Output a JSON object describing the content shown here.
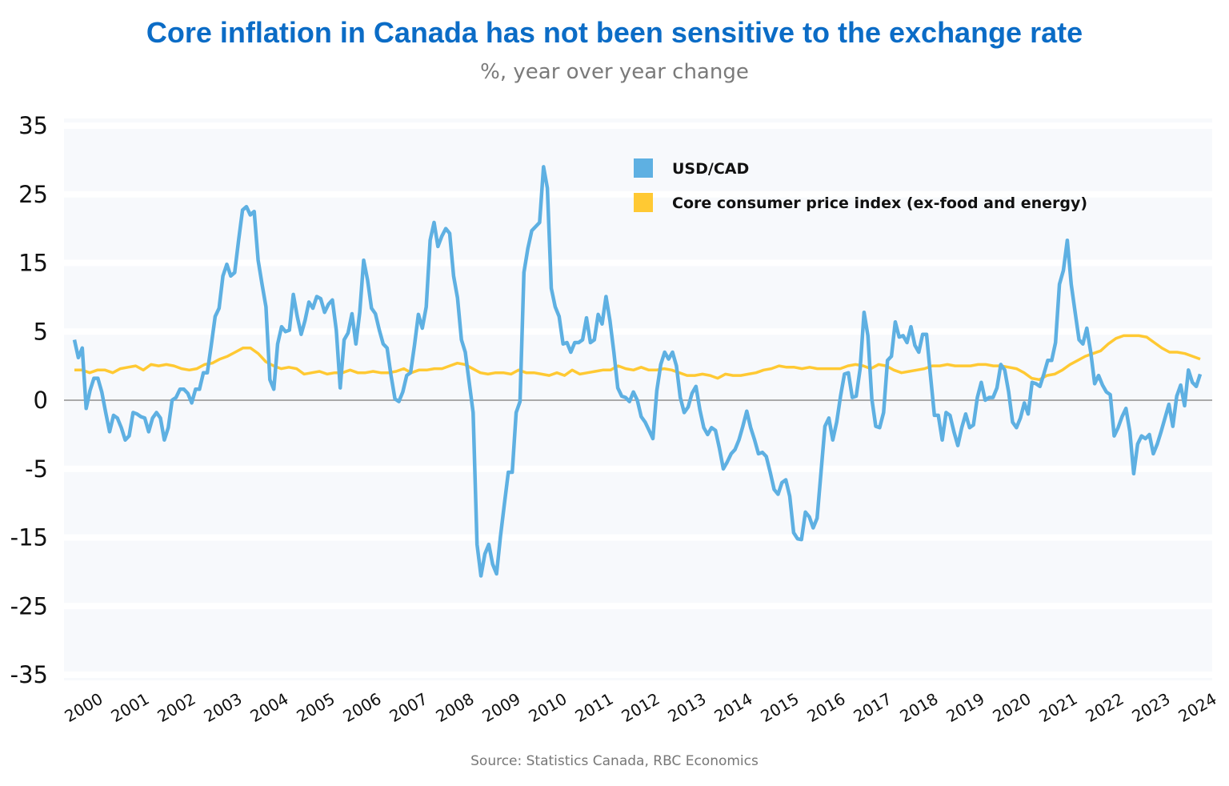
{
  "chart_data": {
    "type": "line",
    "title": "Core inflation in Canada has not been sensitive to the exchange rate",
    "subtitle": "%, year over year change",
    "source": "Source: Statistics Canada, RBC Economics",
    "y_ticks": [
      "35",
      "25",
      "15",
      "5",
      "0",
      "-5",
      "-15",
      "-25",
      "-35"
    ],
    "y_tick_values": [
      35,
      25,
      15,
      5,
      0,
      -5,
      -15,
      -25,
      -35
    ],
    "x_ticks": [
      "2000",
      "2001",
      "2002",
      "2003",
      "2004",
      "2005",
      "2006",
      "2007",
      "2008",
      "2009",
      "2010",
      "2011",
      "2012",
      "2013",
      "2014",
      "2015",
      "2016",
      "2017",
      "2018",
      "2019",
      "2020",
      "2021",
      "2022",
      "2023",
      "2024"
    ],
    "x_range": [
      "2000-01",
      "2023-12"
    ],
    "grid": true,
    "legend_position": "top-center",
    "colors": {
      "title": "#0b6cc6",
      "usdcad": "#5eb0e2",
      "core": "#ffc933",
      "plot_bg": "#f7f9fc",
      "zero_line": "#aaaaaa"
    },
    "series": [
      {
        "name": "USD/CAD",
        "start": "2000-01",
        "frequency": "monthly",
        "values": [
          4.4,
          3.1,
          3.8,
          -0.6,
          0.7,
          1.6,
          1.6,
          0.6,
          -0.9,
          -2.3,
          -1.1,
          -1.3,
          -2.0,
          -2.9,
          -2.6,
          -0.9,
          -1.0,
          -1.2,
          -1.3,
          -2.3,
          -1.3,
          -0.9,
          -1.3,
          -2.9,
          -2.0,
          0,
          0.2,
          0.8,
          0.8,
          0.5,
          -0.2,
          0.8,
          0.8,
          2.0,
          2.0,
          4.0,
          7.2,
          8.4,
          13.1,
          14.8,
          13.1,
          13.6,
          18.3,
          22.7,
          23.2,
          22.0,
          22.5,
          15.4,
          11.9,
          8.6,
          1.5,
          0.8,
          4.1,
          5.7,
          5.0,
          5.2,
          10.4,
          7.2,
          4.8,
          6.6,
          9.3,
          8.4,
          10.1,
          9.8,
          7.8,
          9.0,
          9.6,
          5.2,
          0.9,
          4.4,
          4.9,
          7.6,
          4.1,
          7.8,
          15.4,
          12.5,
          8.4,
          7.6,
          5.2,
          4.1,
          3.8,
          1.8,
          0.1,
          -0.1,
          0.6,
          1.8,
          2.0,
          4.0,
          7.5,
          5.5,
          8.6,
          18.3,
          20.9,
          17.4,
          18.9,
          20.0,
          19.3,
          13.1,
          9.9,
          4.4,
          3.5,
          1.3,
          -0.9,
          -16.0,
          -20.6,
          -17.4,
          -16.0,
          -18.9,
          -20.3,
          -14.8,
          -10.1,
          -5.5,
          -5.5,
          -0.9,
          -0.1,
          13.6,
          17.1,
          19.7,
          20.3,
          20.9,
          29.0,
          25.9,
          11.3,
          8.6,
          7.2,
          4.1,
          4.2,
          3.5,
          4.2,
          4.2,
          4.4,
          7.0,
          4.2,
          4.4,
          7.5,
          6.1,
          10.1,
          6.6,
          3.5,
          0.9,
          0.3,
          0.2,
          -0.1,
          0.6,
          0,
          -1.2,
          -1.6,
          -2.2,
          -2.8,
          0.7,
          2.6,
          3.5,
          3.0,
          3.5,
          2.5,
          0.2,
          -0.9,
          -0.5,
          0.5,
          1.0,
          -0.7,
          -2.0,
          -2.5,
          -2.0,
          -2.2,
          -3.5,
          -5.0,
          -4.5,
          -3.9,
          -3.6,
          -2.9,
          -1.9,
          -0.8,
          -2.0,
          -2.9,
          -3.9,
          -3.8,
          -4.1,
          -5.5,
          -8.0,
          -8.7,
          -7.0,
          -6.6,
          -9.0,
          -14.3,
          -15.2,
          -15.3,
          -11.3,
          -12.0,
          -13.6,
          -12.2,
          -5.5,
          -1.9,
          -1.3,
          -2.9,
          -1.6,
          0.3,
          1.9,
          2.0,
          0.2,
          0.3,
          2.3,
          7.8,
          4.7,
          0.1,
          -1.9,
          -2.0,
          -0.9,
          2.9,
          3.2,
          6.4,
          4.6,
          4.7,
          4.2,
          5.7,
          4.0,
          3.5,
          4.8,
          4.8,
          1.8,
          -1.1,
          -1.1,
          -2.9,
          -0.9,
          -1.1,
          -2.3,
          -3.3,
          -2.0,
          -1.0,
          -2.0,
          -1.8,
          0.2,
          1.3,
          0,
          0.2,
          0.2,
          0.9,
          2.6,
          2.2,
          0.6,
          -1.6,
          -2.0,
          -1.3,
          -0.2,
          -1.0,
          1.3,
          1.2,
          1.0,
          1.9,
          2.9,
          2.9,
          4.2,
          11.9,
          13.9,
          18.3,
          11.9,
          7.8,
          4.4,
          4.1,
          5.5,
          3.5,
          1.2,
          1.8,
          1.1,
          0.6,
          0.4,
          -2.6,
          -2.0,
          -1.2,
          -0.6,
          -2.3,
          -5.7,
          -3.2,
          -2.6,
          -2.8,
          -2.5,
          -3.9,
          -3.2,
          -2.3,
          -1.3,
          -0.3,
          -1.9,
          0.3,
          1.1,
          -0.4,
          2.2,
          1.3,
          1.0,
          1.9
        ]
      },
      {
        "name": "Core consumer price index (ex-food and energy)",
        "start": "2000-01",
        "frequency": "bi-monthly",
        "values": [
          2.2,
          2.2,
          2.0,
          2.2,
          2.2,
          2.0,
          2.3,
          2.4,
          2.5,
          2.2,
          2.6,
          2.5,
          2.6,
          2.5,
          2.3,
          2.2,
          2.3,
          2.6,
          2.7,
          3.0,
          3.2,
          3.5,
          3.8,
          3.8,
          3.4,
          2.8,
          2.5,
          2.3,
          2.4,
          2.3,
          1.9,
          2.0,
          2.1,
          1.9,
          2.0,
          2.0,
          2.2,
          2.0,
          2.0,
          2.1,
          2.0,
          2.0,
          2.1,
          2.3,
          2.0,
          2.2,
          2.2,
          2.3,
          2.3,
          2.5,
          2.7,
          2.6,
          2.3,
          2.0,
          1.9,
          2.0,
          2.0,
          1.9,
          2.2,
          2.0,
          2.0,
          1.9,
          1.8,
          2.0,
          1.8,
          2.2,
          1.9,
          2.0,
          2.1,
          2.2,
          2.2,
          2.5,
          2.3,
          2.2,
          2.4,
          2.2,
          2.2,
          2.3,
          2.2,
          2.0,
          1.8,
          1.8,
          1.9,
          1.8,
          1.6,
          1.9,
          1.8,
          1.8,
          1.9,
          2.0,
          2.2,
          2.3,
          2.5,
          2.4,
          2.4,
          2.3,
          2.4,
          2.3,
          2.3,
          2.3,
          2.3,
          2.5,
          2.6,
          2.5,
          2.3,
          2.6,
          2.5,
          2.2,
          2.0,
          2.1,
          2.2,
          2.3,
          2.5,
          2.5,
          2.6,
          2.5,
          2.5,
          2.5,
          2.6,
          2.6,
          2.5,
          2.5,
          2.4,
          2.3,
          2.0,
          1.6,
          1.5,
          1.8,
          1.9,
          2.2,
          2.6,
          2.9,
          3.2,
          3.4,
          3.6,
          4.1,
          4.5,
          4.7,
          4.7,
          4.7,
          4.6,
          4.2,
          3.8,
          3.5,
          3.5,
          3.4,
          3.2,
          3.0
        ]
      }
    ]
  }
}
